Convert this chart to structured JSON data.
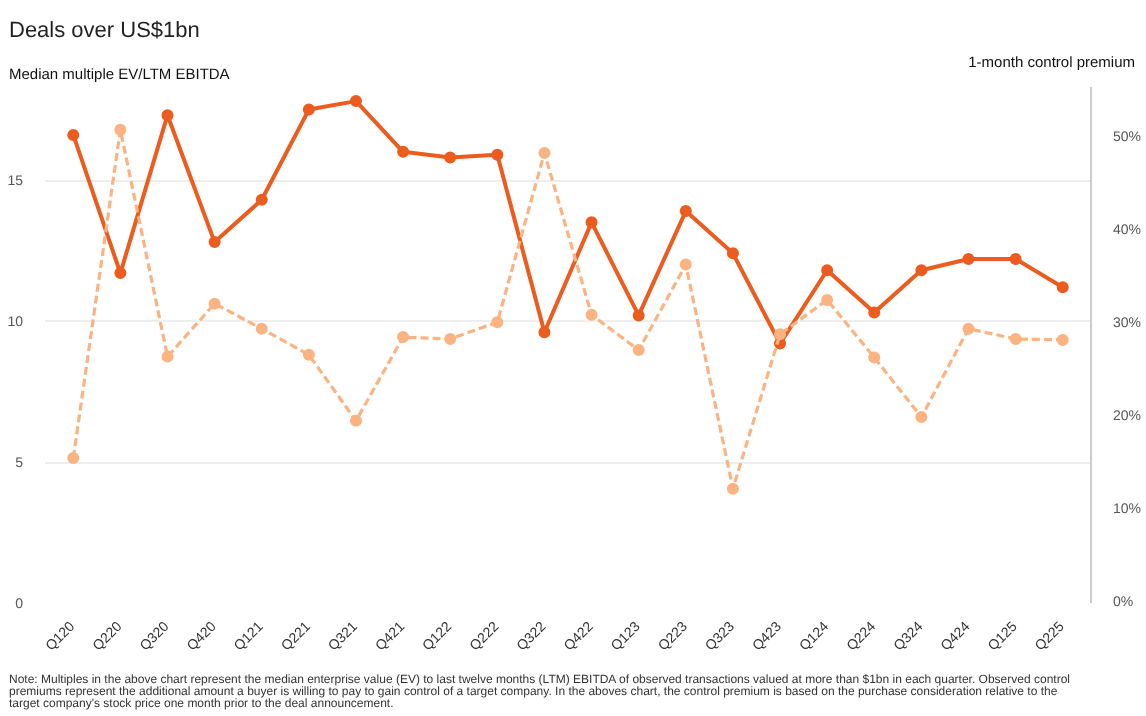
{
  "chart_data": {
    "type": "line",
    "title": "Deals over US$1bn",
    "ylabel": "Median multiple EV/LTM EBITDA",
    "y2label": "1-month control premium",
    "categories": [
      "Q120",
      "Q220",
      "Q320",
      "Q420",
      "Q121",
      "Q221",
      "Q321",
      "Q421",
      "Q122",
      "Q222",
      "Q322",
      "Q422",
      "Q123",
      "Q223",
      "Q323",
      "Q423",
      "Q124",
      "Q224",
      "Q324",
      "Q424",
      "Q125",
      "Q225"
    ],
    "series": [
      {
        "color": "#eb5c1e",
        "line_style": "solid",
        "values": [
          16.6,
          11.7,
          17.3,
          12.8,
          14.3,
          17.5,
          17.8,
          16.0,
          15.8,
          15.9,
          9.6,
          13.5,
          10.2,
          13.9,
          12.4,
          9.2,
          11.8,
          10.3,
          11.8,
          12.2,
          12.2,
          11.2
        ]
      },
      {
        "color": "#fbb381",
        "line_style": "dashed",
        "axis": "y2",
        "values": [
          15.6,
          50.9,
          26.5,
          32.2,
          29.5,
          26.7,
          19.6,
          28.6,
          28.4,
          30.2,
          48.4,
          31.0,
          27.2,
          36.4,
          12.3,
          28.9,
          32.6,
          26.4,
          20.0,
          29.5,
          28.4,
          28.3
        ]
      }
    ],
    "ylim": [
      0,
      18.3
    ],
    "yticks": [
      0,
      5,
      10,
      15
    ],
    "y2lim": [
      0,
      55.5
    ],
    "y2ticks": [
      {
        "value": 0,
        "label": "0%"
      },
      {
        "value": 10,
        "label": "10%"
      },
      {
        "value": 20,
        "label": "20%"
      },
      {
        "value": 30,
        "label": "30%"
      },
      {
        "value": 40,
        "label": "40%"
      },
      {
        "value": 50,
        "label": "50%"
      }
    ],
    "grid": "y",
    "marker": "circle",
    "annotations": [
      "Note: Multiples in the above chart represent the median enterprise value (EV) to last twelve months (LTM) EBITDA of observed transactions valued at more than $1bn in each quarter. Observed control premiums represent the additional amount a buyer is willing to pay to gain control of a target company. In the aboves chart, the control premium is based on the purchase consideration relative to the target company's stock price one month prior to the deal announcement."
    ]
  }
}
